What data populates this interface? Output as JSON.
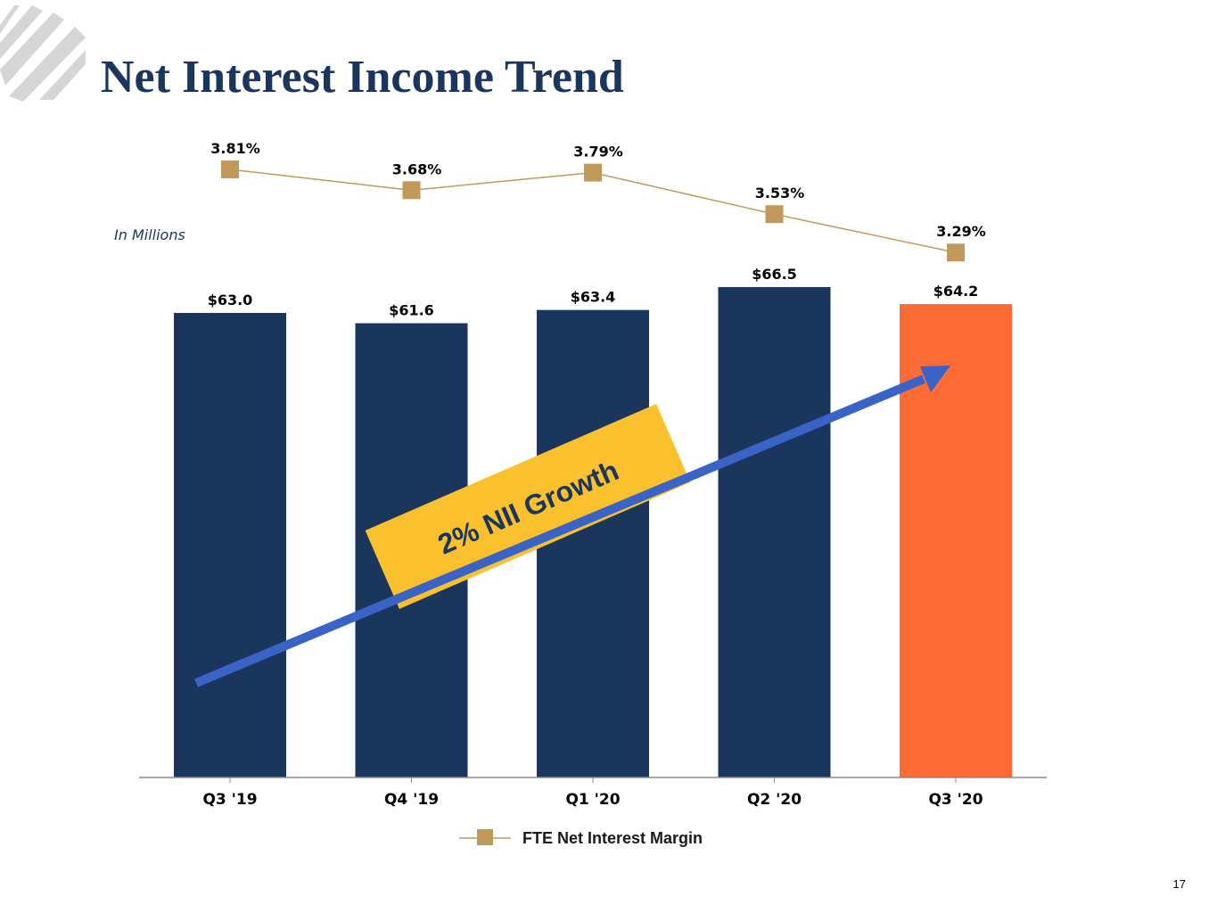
{
  "page": {
    "title": "Net Interest Income Trend",
    "units_note": "In Millions",
    "slide_number": "17"
  },
  "colors": {
    "title": "#1b365d",
    "bar": "#1b365d",
    "bar_highlight": "#ff6b35",
    "margin_line": "#c19a5b",
    "arrow": "#3a63c7",
    "callout_bg": "#fbc02d",
    "callout_text": "#1b365d",
    "logo": "#d6d6d6"
  },
  "callout": {
    "text": "2% NII Growth"
  },
  "chart_data": {
    "type": "bar",
    "categories": [
      "Q3 '19",
      "Q4 '19",
      "Q1 '20",
      "Q2 '20",
      "Q3 '20"
    ],
    "series": [
      {
        "values": [
          63.0,
          61.6,
          63.4,
          66.5,
          64.2
        ],
        "labels": [
          "$63.0",
          "$61.6",
          "$63.4",
          "$66.5",
          "$64.2"
        ],
        "highlight_index": 4
      },
      {
        "name": "FTE Net Interest Margin",
        "type": "line",
        "values": [
          3.81,
          3.68,
          3.79,
          3.53,
          3.29
        ],
        "labels": [
          "3.81%",
          "3.68%",
          "3.79%",
          "3.53%",
          "3.29%"
        ]
      }
    ],
    "ylim": [
      0,
      66.5
    ],
    "legend": {
      "position": "bottom",
      "entries": [
        "FTE Net Interest Margin"
      ]
    },
    "grid": false
  }
}
